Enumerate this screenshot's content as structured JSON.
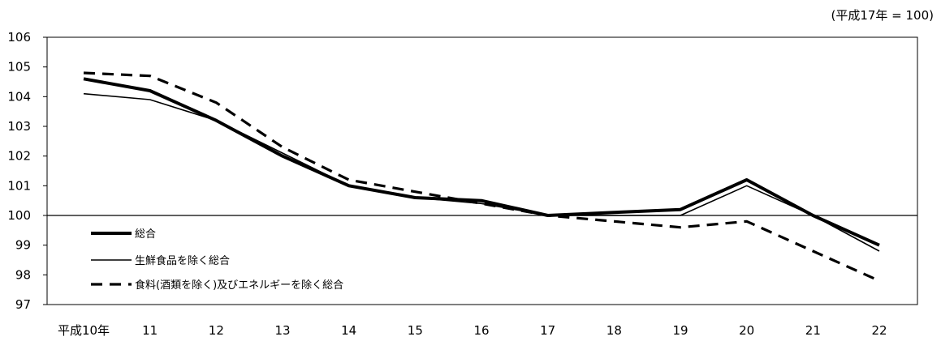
{
  "chart_data": {
    "type": "line",
    "unit_note": "(平成17年 = 100)",
    "categories": [
      "平成10年",
      "11",
      "12",
      "13",
      "14",
      "15",
      "16",
      "17",
      "18",
      "19",
      "20",
      "21",
      "22"
    ],
    "ylim": [
      97,
      106
    ],
    "yticks": [
      97,
      98,
      99,
      100,
      101,
      102,
      103,
      104,
      105,
      106
    ],
    "reference_line": 100,
    "legend_position": "bottom-left",
    "series": [
      {
        "name": "総合",
        "style": "thick",
        "color": "#000000",
        "values": [
          104.6,
          104.2,
          103.2,
          102.0,
          101.0,
          100.6,
          100.5,
          100.0,
          100.1,
          100.2,
          101.2,
          100.0,
          99.0
        ]
      },
      {
        "name": "生鮮食品を除く総合",
        "style": "thin",
        "color": "#000000",
        "values": [
          104.1,
          103.9,
          103.2,
          102.1,
          101.0,
          100.6,
          100.4,
          100.0,
          100.0,
          100.0,
          101.0,
          100.0,
          98.8
        ]
      },
      {
        "name": "食料(酒類を除く)及びエネルギーを除く総合",
        "style": "dashed",
        "color": "#000000",
        "values": [
          104.8,
          104.7,
          103.8,
          102.3,
          101.2,
          100.8,
          100.4,
          100.0,
          99.8,
          99.6,
          99.8,
          98.8,
          97.8
        ]
      }
    ]
  }
}
